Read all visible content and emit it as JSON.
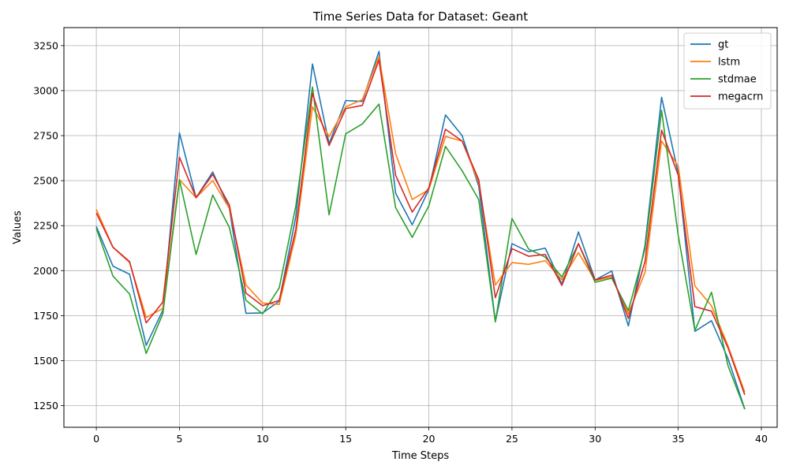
{
  "chart_data": {
    "type": "line",
    "title": "Time Series Data for Dataset: Geant",
    "xlabel": "Time Steps",
    "ylabel": "Values",
    "xlim": [
      -1.95,
      40.95
    ],
    "ylim": [
      1130,
      3350
    ],
    "xticks": [
      0,
      5,
      10,
      15,
      20,
      25,
      30,
      35,
      40
    ],
    "yticks": [
      1250,
      1500,
      1750,
      2000,
      2250,
      2500,
      2750,
      3000,
      3250
    ],
    "grid": true,
    "legend_position": "top-right",
    "x": [
      0,
      1,
      2,
      3,
      4,
      5,
      6,
      7,
      8,
      9,
      10,
      11,
      12,
      13,
      14,
      15,
      16,
      17,
      18,
      19,
      20,
      21,
      22,
      23,
      24,
      25,
      26,
      27,
      28,
      29,
      30,
      31,
      32,
      33,
      34,
      35,
      36,
      37,
      38,
      39
    ],
    "series": [
      {
        "name": "gt",
        "color": "#1f77b4",
        "values": [
          2245,
          2025,
          1980,
          1585,
          1780,
          2765,
          2405,
          2548,
          2345,
          1763,
          1765,
          1830,
          2300,
          3148,
          2705,
          2945,
          2940,
          3218,
          2430,
          2255,
          2450,
          2865,
          2750,
          2470,
          1718,
          2150,
          2105,
          2125,
          1925,
          2215,
          1948,
          1998,
          1693,
          2140,
          2963,
          2540,
          1663,
          1722,
          1510,
          1232
        ]
      },
      {
        "name": "lstm",
        "color": "#ff7f0e",
        "values": [
          2340,
          2130,
          2045,
          1740,
          1790,
          2505,
          2405,
          2500,
          2345,
          1920,
          1820,
          1812,
          2200,
          2910,
          2745,
          2910,
          2950,
          3190,
          2650,
          2395,
          2450,
          2745,
          2720,
          2490,
          1920,
          2045,
          2035,
          2055,
          1950,
          2100,
          1945,
          1965,
          1760,
          1990,
          2720,
          2580,
          1915,
          1805,
          1580,
          1325
        ]
      },
      {
        "name": "stdmae",
        "color": "#2ca02c",
        "values": [
          2235,
          1970,
          1870,
          1540,
          1760,
          2505,
          2090,
          2420,
          2240,
          1835,
          1760,
          1905,
          2360,
          3020,
          2310,
          2760,
          2815,
          2925,
          2350,
          2185,
          2360,
          2690,
          2555,
          2395,
          1715,
          2290,
          2120,
          2075,
          1965,
          2150,
          1935,
          1958,
          1778,
          2120,
          2890,
          2195,
          1668,
          1880,
          1470,
          1230
        ]
      },
      {
        "name": "megacrn",
        "color": "#d62728",
        "values": [
          2320,
          2130,
          2050,
          1710,
          1825,
          2630,
          2405,
          2535,
          2365,
          1875,
          1805,
          1835,
          2230,
          2985,
          2695,
          2900,
          2918,
          3170,
          2530,
          2325,
          2460,
          2785,
          2720,
          2505,
          1850,
          2122,
          2080,
          2090,
          1918,
          2150,
          1948,
          1975,
          1735,
          2050,
          2780,
          2530,
          1800,
          1775,
          1570,
          1310
        ]
      }
    ]
  }
}
